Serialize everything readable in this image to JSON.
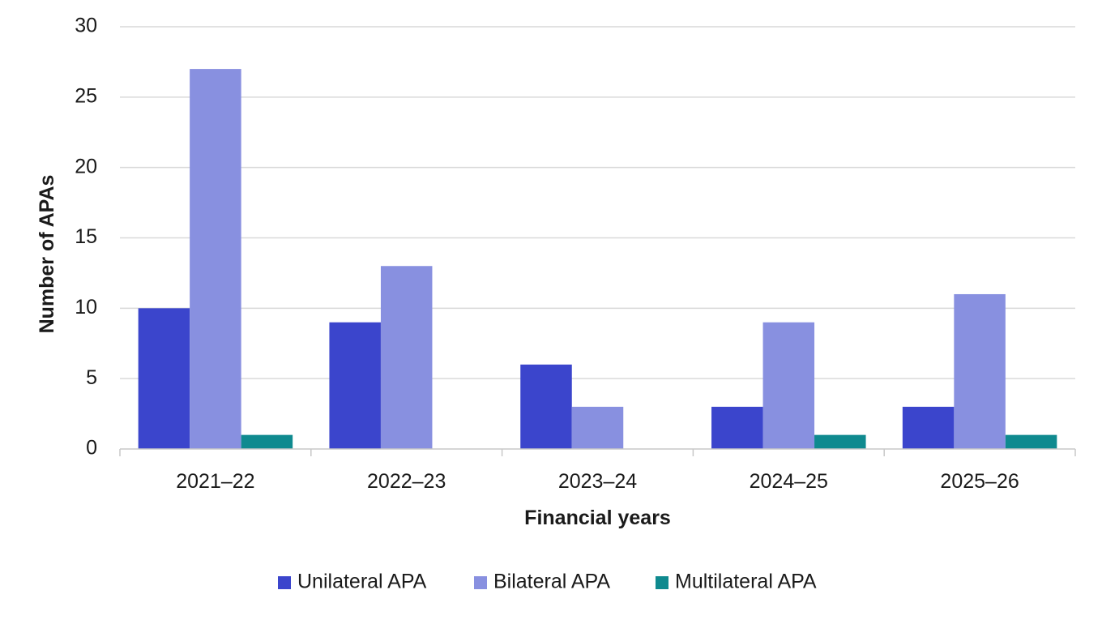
{
  "chart_data": {
    "type": "bar",
    "title": "",
    "xlabel": "Financial years",
    "ylabel": "Number of APAs",
    "ylim": [
      0,
      30
    ],
    "yticks": [
      0,
      5,
      10,
      15,
      20,
      25,
      30
    ],
    "grid": true,
    "legend_position": "bottom",
    "categories": [
      "2021–22",
      "2022–23",
      "2023–24",
      "2024–25",
      "2025–26"
    ],
    "series": [
      {
        "name": "Unilateral APA",
        "color": "#3b45cc",
        "values": [
          10,
          9,
          6,
          3,
          3
        ]
      },
      {
        "name": "Bilateral APA",
        "color": "#8890e0",
        "values": [
          27,
          13,
          3,
          9,
          11
        ]
      },
      {
        "name": "Multilateral APA",
        "color": "#0f8a8f",
        "values": [
          1,
          0,
          0,
          1,
          1
        ]
      }
    ]
  }
}
